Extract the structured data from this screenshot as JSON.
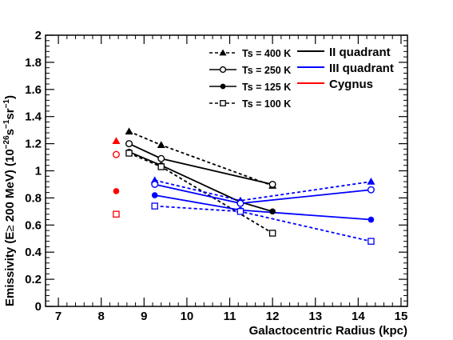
{
  "chart_data": {
    "type": "scatter",
    "xlabel": "Galactocentric Radius (kpc)",
    "ylabel_parts": {
      "main": "Emissivity (E",
      "geq": "≥",
      "energy": " 200 MeV) (10",
      "exp1": "−26",
      "unit1": "s",
      "exp2": "−1",
      "unit2": "sr",
      "exp3": "−1",
      "close": ")"
    },
    "xlim": [
      6.7,
      15.15
    ],
    "ylim": [
      0,
      2
    ],
    "xticks": [
      7,
      8,
      9,
      10,
      11,
      12,
      13,
      14,
      15
    ],
    "xtick_labels": [
      "7",
      "8",
      "9",
      "10",
      "11",
      "12",
      "13",
      "14",
      "15"
    ],
    "yticks": [
      0,
      0.2,
      0.4,
      0.6,
      0.8,
      1,
      1.2,
      1.4,
      1.6,
      1.8,
      2
    ],
    "ytick_labels": [
      "0",
      "0.2",
      "0.4",
      "0.6",
      "0.8",
      "1",
      "1.2",
      "1.4",
      "1.6",
      "1.8",
      "2"
    ],
    "grid": false,
    "legend_markers": [
      {
        "label": "Ts = 400 K",
        "marker": "triangle",
        "dash": "dashed"
      },
      {
        "label": "Ts = 250 K",
        "marker": "open-circle",
        "dash": "solid"
      },
      {
        "label": "Ts = 125 K",
        "marker": "filled-circle",
        "dash": "solid"
      },
      {
        "label": "Ts = 100 K",
        "marker": "open-square",
        "dash": "dashed"
      }
    ],
    "legend_regions": [
      {
        "label": "II quadrant",
        "color": "#000000"
      },
      {
        "label": "III quadrant",
        "color": "#0000ff"
      },
      {
        "label": "Cygnus",
        "color": "#ff0000"
      }
    ],
    "series": [
      {
        "region": "II quadrant",
        "ts": "400 K",
        "color": "#000000",
        "marker": "triangle",
        "dash": "dashed",
        "points": [
          [
            8.65,
            1.29
          ],
          [
            9.4,
            1.19
          ],
          [
            12.0,
            0.89
          ]
        ]
      },
      {
        "region": "II quadrant",
        "ts": "250 K",
        "color": "#000000",
        "marker": "open-circle",
        "dash": "solid",
        "points": [
          [
            8.65,
            1.2
          ],
          [
            9.4,
            1.09
          ],
          [
            12.0,
            0.9
          ]
        ]
      },
      {
        "region": "II quadrant",
        "ts": "125 K",
        "color": "#000000",
        "marker": "filled-circle",
        "dash": "solid",
        "points": [
          [
            8.65,
            1.14
          ],
          [
            9.4,
            1.04
          ],
          [
            11.25,
            0.77
          ],
          [
            12.0,
            0.7
          ]
        ]
      },
      {
        "region": "II quadrant",
        "ts": "100 K",
        "color": "#000000",
        "marker": "open-square",
        "dash": "dashed",
        "points": [
          [
            8.65,
            1.13
          ],
          [
            9.4,
            1.03
          ],
          [
            12.0,
            0.54
          ]
        ]
      },
      {
        "region": "III quadrant",
        "ts": "400 K",
        "color": "#0000ff",
        "marker": "triangle",
        "dash": "dashed",
        "points": [
          [
            9.25,
            0.93
          ],
          [
            11.25,
            0.78
          ],
          [
            14.3,
            0.92
          ]
        ]
      },
      {
        "region": "III quadrant",
        "ts": "250 K",
        "color": "#0000ff",
        "marker": "open-circle",
        "dash": "solid",
        "points": [
          [
            9.25,
            0.9
          ],
          [
            11.25,
            0.76
          ],
          [
            14.3,
            0.86
          ]
        ]
      },
      {
        "region": "III quadrant",
        "ts": "125 K",
        "color": "#0000ff",
        "marker": "filled-circle",
        "dash": "solid",
        "points": [
          [
            9.25,
            0.82
          ],
          [
            11.25,
            0.71
          ],
          [
            14.3,
            0.64
          ]
        ]
      },
      {
        "region": "III quadrant",
        "ts": "100 K",
        "color": "#0000ff",
        "marker": "open-square",
        "dash": "dashed",
        "points": [
          [
            9.25,
            0.74
          ],
          [
            11.25,
            0.7
          ],
          [
            14.3,
            0.48
          ]
        ]
      },
      {
        "region": "Cygnus",
        "ts": "400 K",
        "color": "#ff0000",
        "marker": "triangle",
        "dash": "none",
        "points": [
          [
            8.35,
            1.22
          ]
        ]
      },
      {
        "region": "Cygnus",
        "ts": "250 K",
        "color": "#ff0000",
        "marker": "open-circle",
        "dash": "none",
        "points": [
          [
            8.35,
            1.12
          ]
        ]
      },
      {
        "region": "Cygnus",
        "ts": "125 K",
        "color": "#ff0000",
        "marker": "filled-circle",
        "dash": "none",
        "points": [
          [
            8.35,
            0.85
          ]
        ]
      },
      {
        "region": "Cygnus",
        "ts": "100 K",
        "color": "#ff0000",
        "marker": "open-square",
        "dash": "none",
        "points": [
          [
            8.35,
            0.68
          ]
        ]
      }
    ]
  }
}
